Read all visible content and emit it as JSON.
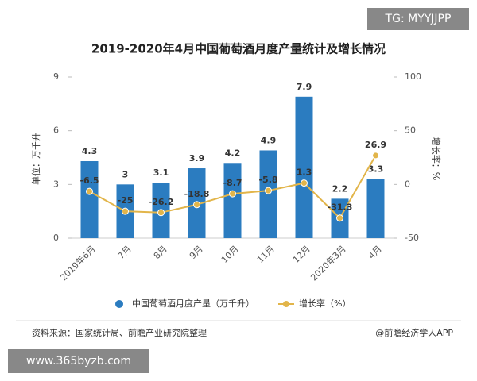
{
  "chart_data": {
    "type": "bar-line",
    "title": "2019-2020年4月中国葡萄酒月度产量统计及增长情况",
    "categories": [
      "2019年6月",
      "7月",
      "8月",
      "9月",
      "10月",
      "11月",
      "12月",
      "2020年3月",
      "4月"
    ],
    "series": [
      {
        "name": "中国葡萄酒月度产量（万千升）",
        "color": "#2b7cc0",
        "type": "bar",
        "values": [
          4.3,
          3,
          3.1,
          3.9,
          4.2,
          4.9,
          7.9,
          2.2,
          3.3
        ]
      },
      {
        "name": "增长率（%）",
        "color": "#e2b54a",
        "type": "line",
        "axis": "y2",
        "values": [
          -6.5,
          -25,
          -26.2,
          -18.8,
          -8.7,
          -5.8,
          1.3,
          -31.3,
          26.9
        ]
      }
    ],
    "ylabel": "单位：万千升",
    "y2label": "增长率：%",
    "ylim": [
      0,
      9
    ],
    "yticks": [
      0,
      3,
      6,
      9
    ],
    "y2lim": [
      -50,
      100
    ],
    "y2ticks": [
      -50,
      0,
      50,
      100
    ],
    "grid": false,
    "legend": "bottom"
  },
  "badge_top": "TG: MYYJJPP",
  "badge_bottom": "www.365byzb.com",
  "source": "资料来源：国家统计局、前瞻产业研究院整理",
  "credit": "@前瞻经济学人APP"
}
